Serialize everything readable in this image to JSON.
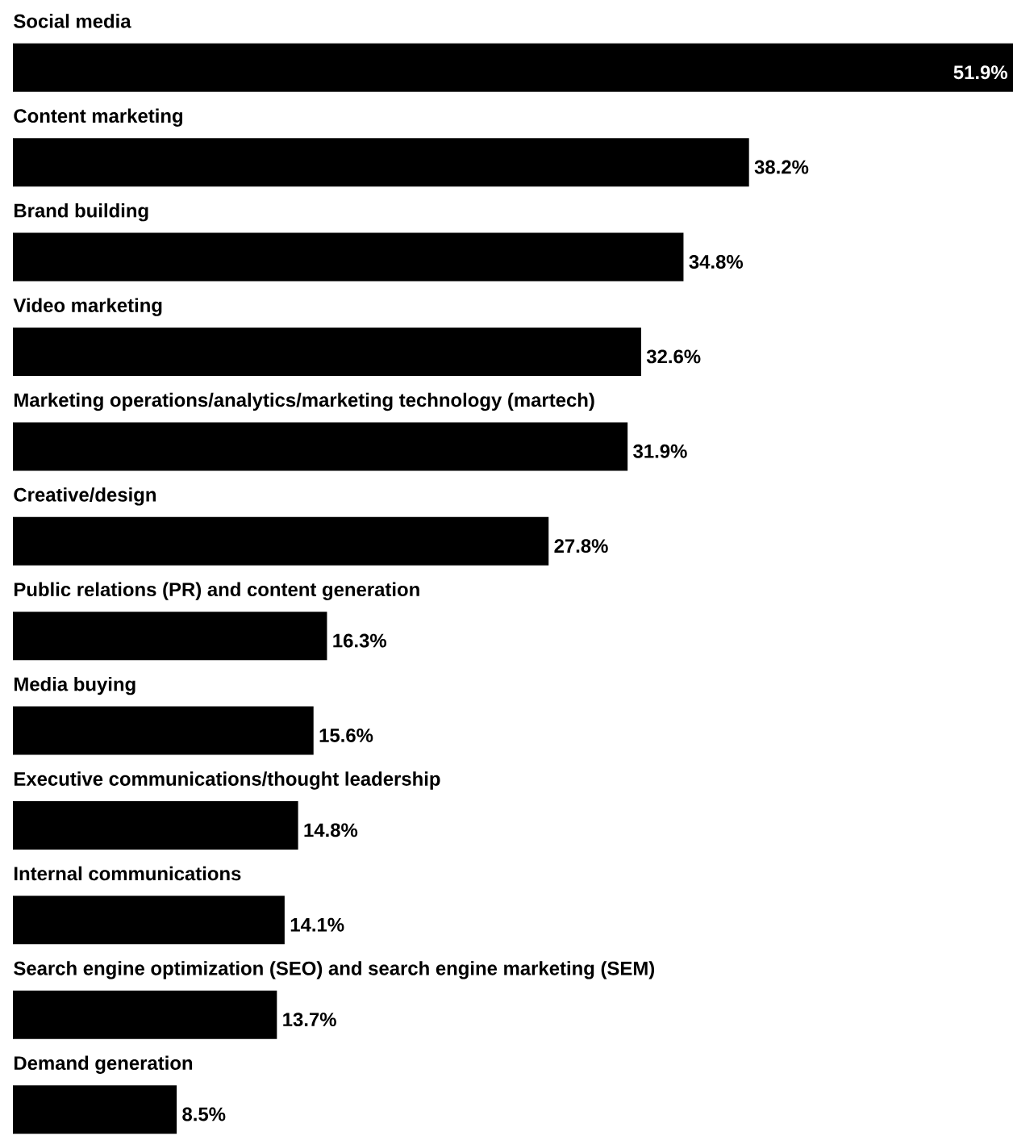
{
  "chart_data": {
    "type": "bar",
    "orientation": "horizontal",
    "color": "#000000",
    "categories": [
      "Social media",
      "Content marketing",
      "Brand building",
      "Video marketing",
      "Marketing operations/analytics/marketing technology (martech)",
      "Creative/design",
      "Public relations (PR) and content generation",
      "Media buying",
      "Executive communications/thought leadership",
      "Internal communications",
      "Search engine optimization (SEO) and search engine marketing (SEM)",
      "Demand generation"
    ],
    "values": [
      51.9,
      38.2,
      34.8,
      32.6,
      31.9,
      27.8,
      16.3,
      15.6,
      14.8,
      14.1,
      13.7,
      8.5
    ],
    "value_labels": [
      "51.9%",
      "38.2%",
      "34.8%",
      "32.6%",
      "31.9%",
      "27.8%",
      "16.3%",
      "15.6%",
      "14.8%",
      "14.1%",
      "13.7%",
      "8.5%"
    ]
  }
}
